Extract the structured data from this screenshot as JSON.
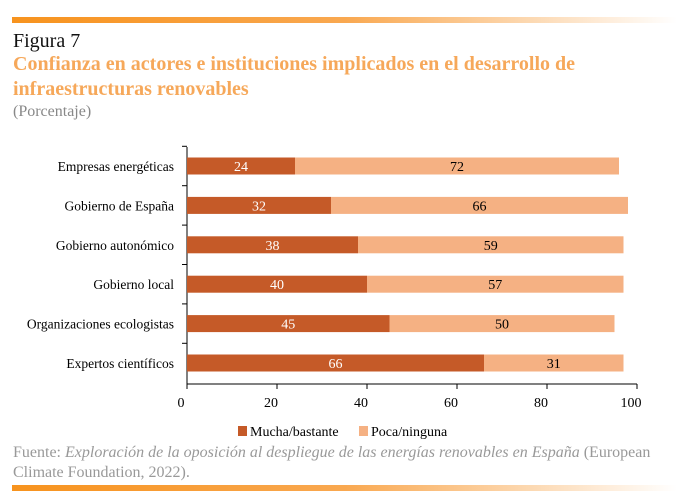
{
  "header": {
    "figure_label": "Figura 7",
    "title": "Confianza en actores e instituciones implicados en el desarrollo de infraestructuras renovables",
    "subtitle": "(Porcentaje)"
  },
  "chart_data": {
    "type": "bar",
    "orientation": "horizontal",
    "stacked": true,
    "categories": [
      "Empresas energéticas",
      "Gobierno de España",
      "Gobierno autonómico",
      "Gobierno local",
      "Organizaciones ecologistas",
      "Expertos científicos"
    ],
    "series": [
      {
        "name": "Mucha/bastante",
        "color": "#c55a28",
        "values": [
          24,
          32,
          38,
          40,
          45,
          66
        ]
      },
      {
        "name": "Poca/ninguna",
        "color": "#f5b183",
        "values": [
          72,
          66,
          59,
          57,
          50,
          31
        ]
      }
    ],
    "xlim": [
      0,
      100
    ],
    "xticks": [
      0,
      20,
      40,
      60,
      80,
      100
    ],
    "grid": false,
    "legend": "bottom"
  },
  "source": {
    "prefix": "Fuente: ",
    "italic": "Exploración de la oposición al despliegue de las energías renovables en España",
    "suffix": " (European Climate Foundation, 2022)."
  }
}
